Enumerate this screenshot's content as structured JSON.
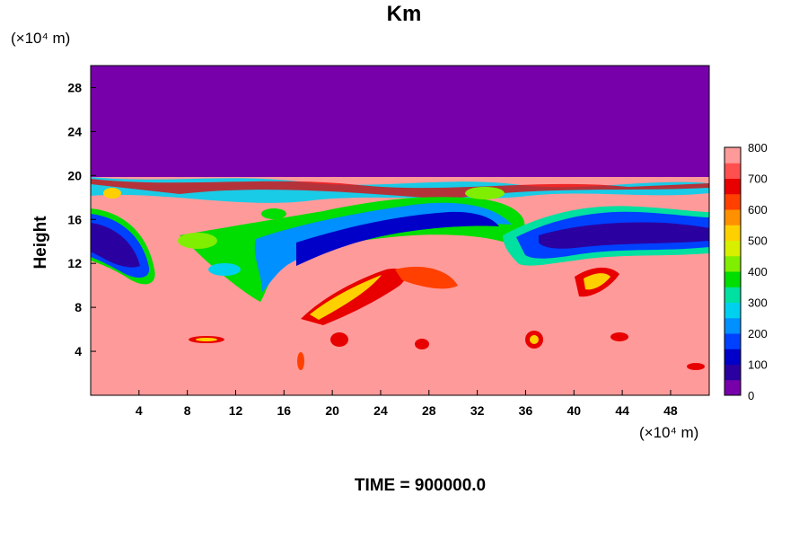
{
  "chart_data": {
    "type": "heatmap",
    "title": "Km",
    "ylabel": "Height",
    "x_unit": "(×10⁴ m)",
    "y_unit": "(×10⁴ m)",
    "x_ticks": [
      "4",
      "8",
      "12",
      "16",
      "20",
      "24",
      "28",
      "32",
      "36",
      "40",
      "44",
      "48"
    ],
    "x_tick_values": [
      4,
      8,
      12,
      16,
      20,
      24,
      28,
      32,
      36,
      40,
      44,
      48
    ],
    "y_ticks": [
      "4",
      "8",
      "12",
      "16",
      "20",
      "24",
      "28"
    ],
    "y_tick_values": [
      4,
      8,
      12,
      16,
      20,
      24,
      28
    ],
    "xlim": [
      0,
      51.2
    ],
    "ylim": [
      0,
      30
    ],
    "colorbar": {
      "ticks": [
        "800",
        "700",
        "600",
        "500",
        "400",
        "300",
        "200",
        "100",
        "0"
      ],
      "tick_values": [
        800,
        700,
        600,
        500,
        400,
        300,
        200,
        100,
        0
      ],
      "range": [
        0,
        800
      ],
      "colors": [
        "#7700aa",
        "#2a00a0",
        "#0000c8",
        "#0040ff",
        "#0090ff",
        "#00d0f0",
        "#00e0a0",
        "#00dd00",
        "#80ee00",
        "#d8f000",
        "#ffd000",
        "#ff9000",
        "#ff4000",
        "#e80000",
        "#ff5050",
        "#ff9a9a"
      ]
    },
    "annotation": "TIME = 900000.0"
  }
}
